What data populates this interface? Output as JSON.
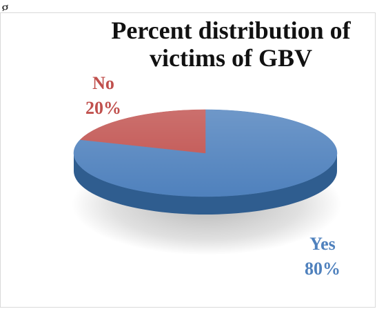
{
  "page_fragment": "g",
  "chart_data": {
    "type": "pie",
    "title_lines": [
      "Percent distribution of",
      "victims of GBV"
    ],
    "slices": [
      {
        "label": "Yes",
        "pct_text": "80%",
        "value": 80,
        "color": "#4f81bd",
        "shade": "#2f5d8f"
      },
      {
        "label": "No",
        "pct_text": "20%",
        "value": 20,
        "color": "#c0504d",
        "shade": "#8e2f2d"
      }
    ],
    "style": "3d",
    "legend": "none"
  }
}
